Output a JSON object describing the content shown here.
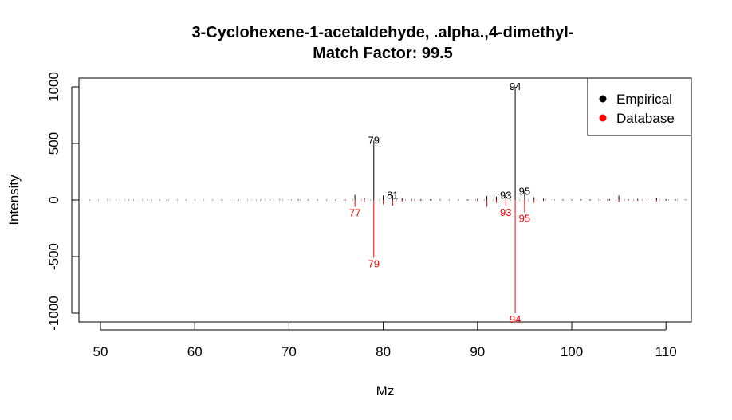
{
  "chart_data": {
    "type": "bar",
    "title": "3-Cyclohexene-1-acetaldehyde, .alpha.,4-dimethyl-",
    "subtitle": "Match Factor: 99.5",
    "xlabel": "Mz",
    "ylabel": "Intensity",
    "xlim": [
      48,
      112
    ],
    "ylim": [
      -1080,
      1080
    ],
    "x_ticks": [
      50,
      60,
      70,
      80,
      90,
      100,
      110
    ],
    "y_ticks": [
      -1000,
      -500,
      0,
      500,
      1000
    ],
    "grid": false,
    "legend_position": "top-right",
    "series": [
      {
        "name": "Empirical",
        "color": "#000000",
        "direction": "up",
        "points": [
          {
            "x": 50,
            "y": 1
          },
          {
            "x": 51,
            "y": 2
          },
          {
            "x": 52,
            "y": 1
          },
          {
            "x": 53,
            "y": 3
          },
          {
            "x": 54,
            "y": 1
          },
          {
            "x": 55,
            "y": 4
          },
          {
            "x": 56,
            "y": 1
          },
          {
            "x": 57,
            "y": 2
          },
          {
            "x": 58,
            "y": 1
          },
          {
            "x": 59,
            "y": 1
          },
          {
            "x": 60,
            "y": 1
          },
          {
            "x": 61,
            "y": 1
          },
          {
            "x": 62,
            "y": 1
          },
          {
            "x": 63,
            "y": 2
          },
          {
            "x": 64,
            "y": 1
          },
          {
            "x": 65,
            "y": 3
          },
          {
            "x": 66,
            "y": 2
          },
          {
            "x": 67,
            "y": 4
          },
          {
            "x": 68,
            "y": 3
          },
          {
            "x": 69,
            "y": 4
          },
          {
            "x": 70,
            "y": 8
          },
          {
            "x": 71,
            "y": 6
          },
          {
            "x": 72,
            "y": 4
          },
          {
            "x": 73,
            "y": 3
          },
          {
            "x": 74,
            "y": 2
          },
          {
            "x": 75,
            "y": 3
          },
          {
            "x": 76,
            "y": 4
          },
          {
            "x": 77,
            "y": 45
          },
          {
            "x": 78,
            "y": 20
          },
          {
            "x": 79,
            "y": 525
          },
          {
            "x": 80,
            "y": 40
          },
          {
            "x": 81,
            "y": 40
          },
          {
            "x": 82,
            "y": 15
          },
          {
            "x": 83,
            "y": 10
          },
          {
            "x": 84,
            "y": 8
          },
          {
            "x": 85,
            "y": 6
          },
          {
            "x": 86,
            "y": 3
          },
          {
            "x": 87,
            "y": 2
          },
          {
            "x": 88,
            "y": 3
          },
          {
            "x": 89,
            "y": 5
          },
          {
            "x": 90,
            "y": 10
          },
          {
            "x": 91,
            "y": 35
          },
          {
            "x": 92,
            "y": 30
          },
          {
            "x": 93,
            "y": 40
          },
          {
            "x": 94,
            "y": 1000
          },
          {
            "x": 95,
            "y": 75
          },
          {
            "x": 96,
            "y": 25
          },
          {
            "x": 97,
            "y": 12
          },
          {
            "x": 98,
            "y": 6
          },
          {
            "x": 99,
            "y": 4
          },
          {
            "x": 100,
            "y": 4
          },
          {
            "x": 101,
            "y": 5
          },
          {
            "x": 102,
            "y": 4
          },
          {
            "x": 103,
            "y": 5
          },
          {
            "x": 104,
            "y": 8
          },
          {
            "x": 105,
            "y": 40
          },
          {
            "x": 106,
            "y": 8
          },
          {
            "x": 107,
            "y": 10
          },
          {
            "x": 108,
            "y": 12
          },
          {
            "x": 109,
            "y": 15
          },
          {
            "x": 110,
            "y": 8
          },
          {
            "x": 111,
            "y": 6
          },
          {
            "x": 112,
            "y": 4
          }
        ],
        "labels": [
          {
            "x": 79,
            "text": "79"
          },
          {
            "x": 81,
            "text": "81"
          },
          {
            "x": 93,
            "text": "93"
          },
          {
            "x": 94,
            "text": "94"
          },
          {
            "x": 95,
            "text": "95"
          }
        ]
      },
      {
        "name": "Database",
        "color": "#ff0000",
        "direction": "down",
        "points": [
          {
            "x": 48,
            "y": 1
          },
          {
            "x": 49,
            "y": 1
          },
          {
            "x": 50,
            "y": 1
          },
          {
            "x": 51,
            "y": 2
          },
          {
            "x": 52,
            "y": 1
          },
          {
            "x": 53,
            "y": 3
          },
          {
            "x": 54,
            "y": 1
          },
          {
            "x": 55,
            "y": 4
          },
          {
            "x": 56,
            "y": 1
          },
          {
            "x": 57,
            "y": 2
          },
          {
            "x": 58,
            "y": 1
          },
          {
            "x": 59,
            "y": 1
          },
          {
            "x": 60,
            "y": 1
          },
          {
            "x": 61,
            "y": 1
          },
          {
            "x": 62,
            "y": 1
          },
          {
            "x": 63,
            "y": 2
          },
          {
            "x": 64,
            "y": 1
          },
          {
            "x": 65,
            "y": 3
          },
          {
            "x": 66,
            "y": 2
          },
          {
            "x": 67,
            "y": 4
          },
          {
            "x": 68,
            "y": 3
          },
          {
            "x": 69,
            "y": 3
          },
          {
            "x": 70,
            "y": 6
          },
          {
            "x": 71,
            "y": 4
          },
          {
            "x": 72,
            "y": 3
          },
          {
            "x": 73,
            "y": 2
          },
          {
            "x": 74,
            "y": 2
          },
          {
            "x": 75,
            "y": 3
          },
          {
            "x": 76,
            "y": 4
          },
          {
            "x": 77,
            "y": 60
          },
          {
            "x": 78,
            "y": 20
          },
          {
            "x": 79,
            "y": 510
          },
          {
            "x": 80,
            "y": 40
          },
          {
            "x": 81,
            "y": 50
          },
          {
            "x": 82,
            "y": 15
          },
          {
            "x": 83,
            "y": 10
          },
          {
            "x": 84,
            "y": 8
          },
          {
            "x": 85,
            "y": 6
          },
          {
            "x": 86,
            "y": 3
          },
          {
            "x": 87,
            "y": 2
          },
          {
            "x": 88,
            "y": 3
          },
          {
            "x": 89,
            "y": 5
          },
          {
            "x": 90,
            "y": 10
          },
          {
            "x": 91,
            "y": 60
          },
          {
            "x": 92,
            "y": 25
          },
          {
            "x": 93,
            "y": 55
          },
          {
            "x": 94,
            "y": 1000
          },
          {
            "x": 95,
            "y": 110
          },
          {
            "x": 96,
            "y": 25
          },
          {
            "x": 97,
            "y": 10
          },
          {
            "x": 98,
            "y": 4
          },
          {
            "x": 99,
            "y": 3
          },
          {
            "x": 100,
            "y": 3
          },
          {
            "x": 101,
            "y": 3
          },
          {
            "x": 102,
            "y": 3
          },
          {
            "x": 103,
            "y": 4
          },
          {
            "x": 104,
            "y": 6
          },
          {
            "x": 105,
            "y": 20
          },
          {
            "x": 106,
            "y": 6
          },
          {
            "x": 107,
            "y": 8
          },
          {
            "x": 108,
            "y": 8
          },
          {
            "x": 109,
            "y": 12
          },
          {
            "x": 110,
            "y": 6
          },
          {
            "x": 111,
            "y": 5
          }
        ],
        "labels": [
          {
            "x": 77,
            "text": "77"
          },
          {
            "x": 79,
            "text": "79"
          },
          {
            "x": 93,
            "text": "93"
          },
          {
            "x": 94,
            "text": "94"
          },
          {
            "x": 95,
            "text": "95"
          }
        ]
      }
    ]
  }
}
